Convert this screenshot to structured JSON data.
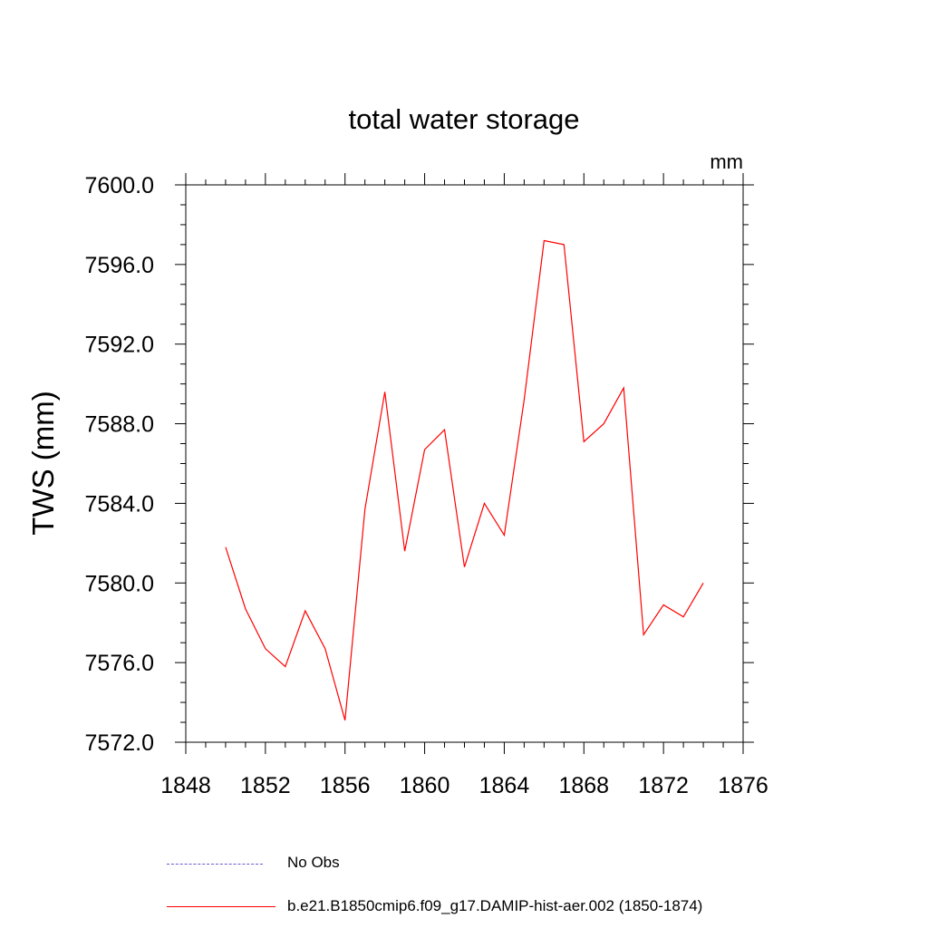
{
  "chart_data": {
    "type": "line",
    "title": "total water storage",
    "units_label": "mm",
    "ylabel": "TWS  (mm)",
    "xlabel": "",
    "xlim": [
      1848,
      1876
    ],
    "ylim": [
      7572.0,
      7600.0
    ],
    "x_ticks": [
      1848,
      1852,
      1856,
      1860,
      1864,
      1868,
      1872,
      1876
    ],
    "x_tick_labels": [
      "1848",
      "1852",
      "1856",
      "1860",
      "1864",
      "1868",
      "1872",
      "1876"
    ],
    "y_ticks": [
      7572.0,
      7576.0,
      7580.0,
      7584.0,
      7588.0,
      7592.0,
      7596.0,
      7600.0
    ],
    "y_tick_labels": [
      "7572.0",
      "7576.0",
      "7580.0",
      "7584.0",
      "7588.0",
      "7592.0",
      "7596.0",
      "7600.0"
    ],
    "grid": false,
    "legend_position": "bottom",
    "legend": [
      {
        "label": "No Obs",
        "color": "#6a5acd",
        "style": "dashed"
      },
      {
        "label": "b.e21.B1850cmip6.f09_g17.DAMIP-hist-aer.002 (1850-1874)",
        "color": "#ff0000",
        "style": "solid"
      }
    ],
    "series": [
      {
        "name": "b.e21.B1850cmip6.f09_g17.DAMIP-hist-aer.002 (1850-1874)",
        "color": "#ff0000",
        "x": [
          1850,
          1851,
          1852,
          1853,
          1854,
          1855,
          1856,
          1857,
          1858,
          1859,
          1860,
          1861,
          1862,
          1863,
          1864,
          1865,
          1866,
          1867,
          1868,
          1869,
          1870,
          1871,
          1872,
          1873,
          1874
        ],
        "values": [
          7581.8,
          7578.7,
          7576.7,
          7575.8,
          7578.6,
          7576.7,
          7573.1,
          7583.7,
          7589.6,
          7581.6,
          7586.7,
          7587.7,
          7580.8,
          7584.0,
          7582.4,
          7589.2,
          7597.2,
          7597.0,
          7587.1,
          7588.0,
          7589.8,
          7577.4,
          7578.9,
          7578.3,
          7580.0
        ]
      }
    ]
  }
}
